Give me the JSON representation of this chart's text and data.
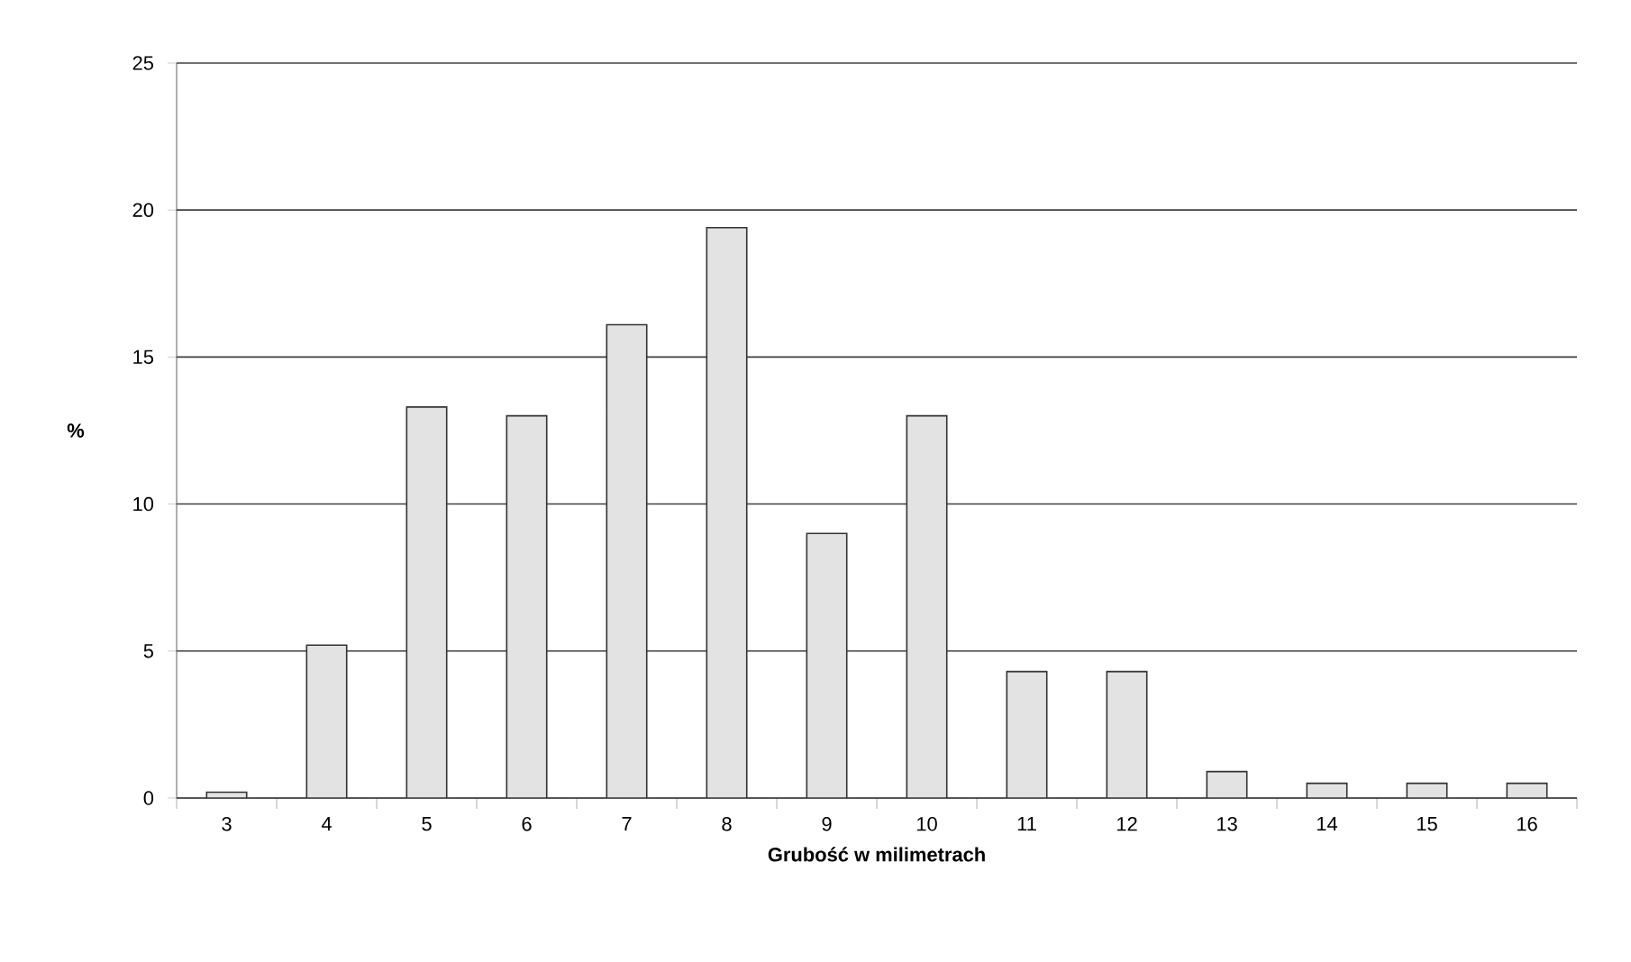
{
  "chart_data": {
    "type": "bar",
    "categories": [
      "3",
      "4",
      "5",
      "6",
      "7",
      "8",
      "9",
      "10",
      "11",
      "12",
      "13",
      "14",
      "15",
      "16"
    ],
    "values": [
      0.2,
      5.2,
      13.3,
      13.0,
      16.1,
      19.4,
      9.0,
      13.0,
      4.3,
      4.3,
      0.9,
      0.5,
      0.5,
      0.5
    ],
    "color": "#e3e3e3",
    "xlabel": "Grubość w milimetrach",
    "ylabel": "%",
    "ylim": [
      0,
      25
    ],
    "yticks": [
      0,
      5,
      10,
      15,
      20,
      25
    ],
    "grid": "y"
  }
}
